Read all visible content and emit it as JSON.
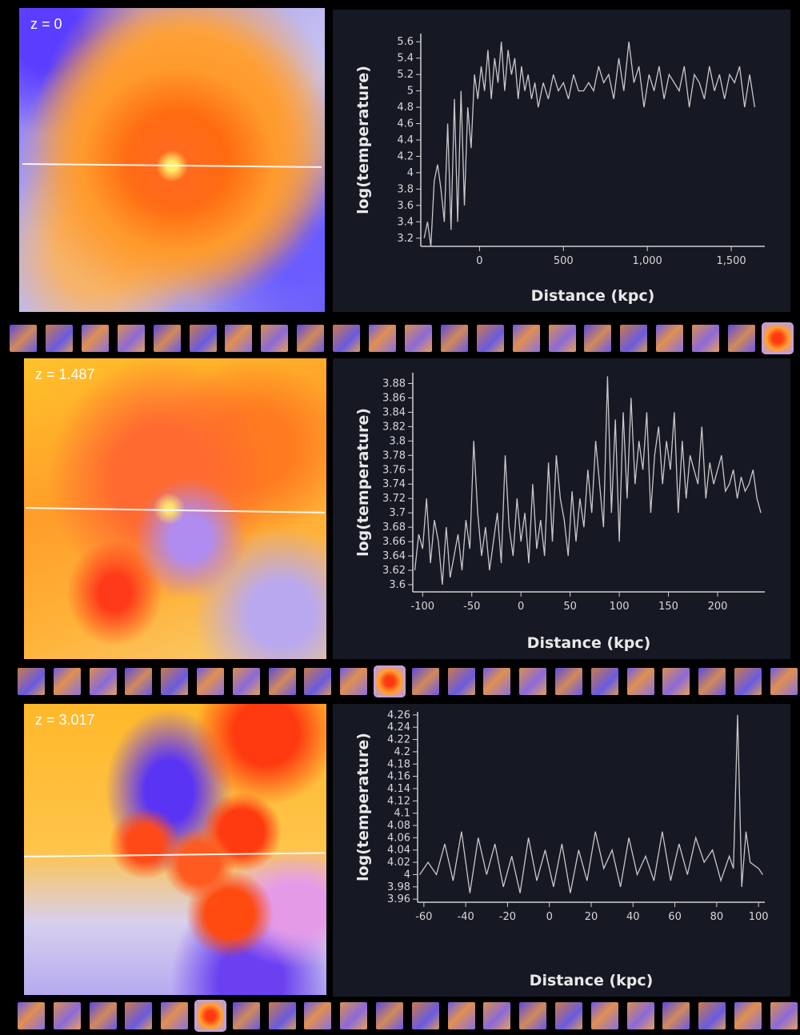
{
  "panels": [
    {
      "z_label": "z = 0",
      "palette": "hot",
      "selected_thumbnail": 21,
      "thumbnail_count": 22
    },
    {
      "z_label": "z = 1.487",
      "palette": "warm",
      "selected_thumbnail": 10,
      "thumbnail_count": 22
    },
    {
      "z_label": "z = 3.017",
      "palette": "mixed",
      "selected_thumbnail": 5,
      "thumbnail_count": 22
    }
  ],
  "chart_data": [
    {
      "type": "line",
      "xlabel": "Distance (kpc)",
      "ylabel": "log(temperature)",
      "xlim": [
        -350,
        1700
      ],
      "ylim": [
        3.1,
        5.7
      ],
      "xticks": [
        0,
        500,
        1000,
        1500
      ],
      "xtick_labels": [
        "0",
        "500",
        "1,000",
        "1,500"
      ],
      "yticks": [
        3.2,
        3.4,
        3.6,
        3.8,
        4,
        4.2,
        4.4,
        4.6,
        4.8,
        5,
        5.2,
        5.4,
        5.6
      ],
      "ytick_labels": [
        "3.2",
        "3.4",
        "3.6",
        "3.8",
        "4",
        "4.2",
        "4.4",
        "4.6",
        "4.8",
        "5",
        "5.2",
        "5.4",
        "5.6"
      ],
      "series": [
        {
          "name": "temperature",
          "x": [
            -330,
            -310,
            -290,
            -270,
            -250,
            -230,
            -210,
            -190,
            -170,
            -150,
            -130,
            -110,
            -90,
            -70,
            -50,
            -30,
            -10,
            10,
            30,
            50,
            70,
            90,
            110,
            130,
            150,
            170,
            190,
            210,
            230,
            250,
            270,
            290,
            310,
            330,
            350,
            380,
            410,
            440,
            470,
            500,
            530,
            560,
            590,
            620,
            650,
            680,
            710,
            740,
            770,
            800,
            830,
            860,
            890,
            920,
            950,
            980,
            1010,
            1040,
            1070,
            1100,
            1130,
            1160,
            1190,
            1220,
            1250,
            1280,
            1310,
            1340,
            1370,
            1400,
            1430,
            1460,
            1490,
            1520,
            1550,
            1580,
            1610,
            1640
          ],
          "values": [
            3.2,
            3.4,
            3.1,
            3.9,
            4.1,
            3.8,
            3.4,
            4.6,
            3.3,
            4.9,
            3.4,
            5.0,
            3.6,
            4.8,
            4.3,
            5.2,
            4.9,
            5.3,
            5.0,
            5.5,
            4.9,
            5.4,
            5.1,
            5.6,
            5.0,
            5.5,
            5.2,
            5.4,
            4.9,
            5.3,
            5.0,
            5.2,
            4.9,
            5.1,
            4.8,
            5.1,
            4.9,
            5.2,
            5.0,
            5.1,
            4.9,
            5.2,
            5.0,
            5.0,
            5.1,
            5.0,
            5.3,
            5.1,
            5.2,
            4.9,
            5.4,
            5.0,
            5.6,
            5.1,
            5.3,
            4.8,
            5.2,
            5.0,
            5.3,
            4.9,
            5.2,
            5.1,
            5.0,
            5.3,
            4.8,
            5.2,
            5.1,
            4.9,
            5.3,
            5.0,
            5.2,
            4.9,
            5.2,
            5.1,
            5.3,
            4.8,
            5.2,
            4.8
          ]
        }
      ]
    },
    {
      "type": "line",
      "xlabel": "Distance (kpc)",
      "ylabel": "log(temperature)",
      "xlim": [
        -110,
        248
      ],
      "ylim": [
        3.59,
        3.895
      ],
      "xticks": [
        -100,
        -50,
        0,
        50,
        100,
        150,
        200
      ],
      "xtick_labels": [
        "-100",
        "-50",
        "0",
        "50",
        "100",
        "150",
        "200"
      ],
      "yticks": [
        3.6,
        3.62,
        3.64,
        3.66,
        3.68,
        3.7,
        3.72,
        3.74,
        3.76,
        3.78,
        3.8,
        3.82,
        3.84,
        3.86,
        3.88
      ],
      "ytick_labels": [
        "3.6",
        "3.62",
        "3.64",
        "3.66",
        "3.68",
        "3.7",
        "3.72",
        "3.74",
        "3.76",
        "3.78",
        "3.8",
        "3.82",
        "3.84",
        "3.86",
        "3.88"
      ],
      "series": [
        {
          "name": "temperature",
          "x": [
            -108,
            -104,
            -100,
            -96,
            -92,
            -88,
            -84,
            -80,
            -76,
            -72,
            -68,
            -64,
            -60,
            -56,
            -52,
            -48,
            -44,
            -40,
            -36,
            -32,
            -28,
            -24,
            -20,
            -16,
            -12,
            -8,
            -4,
            0,
            4,
            8,
            12,
            16,
            20,
            24,
            28,
            32,
            36,
            40,
            44,
            48,
            52,
            56,
            60,
            64,
            68,
            72,
            76,
            80,
            84,
            88,
            92,
            96,
            100,
            104,
            108,
            112,
            116,
            120,
            124,
            128,
            132,
            136,
            140,
            144,
            148,
            152,
            156,
            160,
            164,
            168,
            172,
            176,
            180,
            184,
            188,
            192,
            196,
            200,
            204,
            208,
            212,
            216,
            220,
            224,
            228,
            232,
            236,
            240,
            244
          ],
          "values": [
            3.62,
            3.67,
            3.65,
            3.72,
            3.63,
            3.69,
            3.66,
            3.6,
            3.68,
            3.61,
            3.64,
            3.67,
            3.62,
            3.69,
            3.65,
            3.8,
            3.7,
            3.64,
            3.68,
            3.62,
            3.66,
            3.7,
            3.63,
            3.78,
            3.68,
            3.64,
            3.72,
            3.66,
            3.7,
            3.63,
            3.74,
            3.65,
            3.69,
            3.64,
            3.77,
            3.66,
            3.78,
            3.72,
            3.69,
            3.64,
            3.73,
            3.66,
            3.72,
            3.68,
            3.76,
            3.7,
            3.8,
            3.74,
            3.68,
            3.89,
            3.7,
            3.83,
            3.66,
            3.84,
            3.72,
            3.86,
            3.74,
            3.8,
            3.76,
            3.84,
            3.7,
            3.78,
            3.82,
            3.74,
            3.8,
            3.76,
            3.84,
            3.7,
            3.8,
            3.72,
            3.78,
            3.76,
            3.74,
            3.82,
            3.72,
            3.77,
            3.74,
            3.76,
            3.78,
            3.73,
            3.74,
            3.76,
            3.72,
            3.75,
            3.73,
            3.74,
            3.76,
            3.72,
            3.7
          ]
        }
      ]
    },
    {
      "type": "line",
      "xlabel": "Distance (kpc)",
      "ylabel": "log(temperature)",
      "xlim": [
        -63,
        103
      ],
      "ylim": [
        3.955,
        4.265
      ],
      "xticks": [
        -60,
        -40,
        -20,
        0,
        20,
        40,
        60,
        80,
        100
      ],
      "xtick_labels": [
        "-60",
        "-40",
        "-20",
        "0",
        "20",
        "40",
        "60",
        "80",
        "100"
      ],
      "yticks": [
        3.96,
        3.98,
        4,
        4.02,
        4.04,
        4.06,
        4.08,
        4.1,
        4.12,
        4.14,
        4.16,
        4.18,
        4.2,
        4.22,
        4.24,
        4.26
      ],
      "ytick_labels": [
        "3.96",
        "3.98",
        "4",
        "4.02",
        "4.04",
        "4.06",
        "4.08",
        "4.1",
        "4.12",
        "4.14",
        "4.16",
        "4.18",
        "4.2",
        "4.22",
        "4.24",
        "4.26"
      ],
      "series": [
        {
          "name": "temperature",
          "x": [
            -62,
            -58,
            -54,
            -50,
            -46,
            -42,
            -38,
            -34,
            -30,
            -26,
            -22,
            -18,
            -14,
            -10,
            -6,
            -2,
            2,
            6,
            10,
            14,
            18,
            22,
            26,
            30,
            34,
            38,
            42,
            46,
            50,
            54,
            58,
            62,
            66,
            70,
            74,
            78,
            82,
            86,
            88,
            90,
            92,
            94,
            96,
            100,
            102
          ],
          "values": [
            4.0,
            4.02,
            4.0,
            4.05,
            3.99,
            4.07,
            3.97,
            4.06,
            4.0,
            4.05,
            3.98,
            4.03,
            3.97,
            4.06,
            3.99,
            4.04,
            3.98,
            4.05,
            3.97,
            4.04,
            3.99,
            4.07,
            4.01,
            4.04,
            3.98,
            4.06,
            4.0,
            4.03,
            3.99,
            4.07,
            3.99,
            4.05,
            4.0,
            4.06,
            4.02,
            4.04,
            3.99,
            4.03,
            4.01,
            4.26,
            3.98,
            4.07,
            4.02,
            4.01,
            4.0
          ]
        }
      ]
    }
  ]
}
